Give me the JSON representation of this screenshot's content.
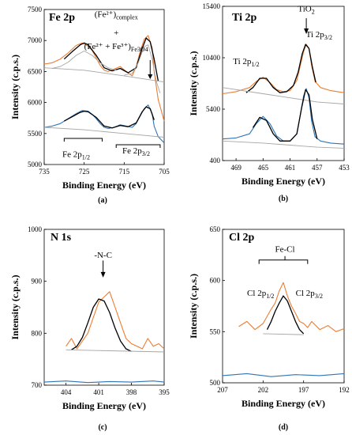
{
  "chart_data": [
    {
      "type": "line",
      "title": "Fe 2p",
      "panel_label": "(a)",
      "xlabel": "Binding Energy (eV)",
      "ylabel": "Intensity (c.p.s.)",
      "x_reversed": true,
      "xlim": [
        735,
        705
      ],
      "ylim": [
        5000,
        7500
      ],
      "xticks": [
        735,
        725,
        715,
        705
      ],
      "yticks": [
        5000,
        5500,
        6000,
        6500,
        7000,
        7500
      ],
      "series": [
        {
          "role": "spectrum",
          "color": "#ed7d31",
          "x": [
            735,
            733,
            731,
            729,
            727,
            725.5,
            724,
            723,
            722,
            721,
            720,
            719,
            717.5,
            716,
            714.5,
            713,
            712,
            711,
            710,
            709,
            708,
            707.5,
            706.5,
            705
          ],
          "y": [
            6620,
            6640,
            6700,
            6800,
            6920,
            6960,
            6910,
            6840,
            6720,
            6600,
            6520,
            6500,
            6540,
            6580,
            6500,
            6430,
            6580,
            6820,
            7020,
            7080,
            6880,
            6500,
            6050,
            5700
          ]
        },
        {
          "role": "fit",
          "color": "#000000",
          "x": [
            730,
            728,
            726,
            725,
            724,
            722,
            720,
            718,
            716,
            714,
            712,
            710.5,
            709.5,
            708.5,
            707.5,
            706.5
          ],
          "y": [
            6700,
            6820,
            6930,
            6960,
            6930,
            6760,
            6560,
            6510,
            6550,
            6480,
            6560,
            6870,
            7040,
            6980,
            6700,
            6350
          ]
        },
        {
          "role": "component",
          "color": "#a6a6a6",
          "x": [
            733,
            731,
            729,
            727,
            725,
            723,
            721,
            719,
            717
          ],
          "y": [
            6550,
            6580,
            6650,
            6760,
            6830,
            6760,
            6640,
            6560,
            6520
          ]
        },
        {
          "role": "component",
          "color": "#a6a6a6",
          "x": [
            715,
            713,
            711.5,
            710,
            709,
            708,
            707,
            706
          ],
          "y": [
            6440,
            6470,
            6640,
            6900,
            6930,
            6700,
            6350,
            6150
          ]
        },
        {
          "role": "baseline",
          "color": "#a6a6a6",
          "x": [
            735,
            725,
            715,
            705
          ],
          "y": [
            6560,
            6520,
            6430,
            6330
          ]
        },
        {
          "role": "spectrum",
          "color": "#2e75b6",
          "x": [
            735,
            733,
            731,
            729,
            727,
            725.5,
            724,
            723,
            722,
            721,
            720,
            719,
            717.5,
            716,
            714.5,
            713,
            712,
            711,
            710,
            709,
            708,
            707.5,
            706.5,
            705
          ],
          "y": [
            5600,
            5620,
            5660,
            5740,
            5820,
            5870,
            5860,
            5810,
            5740,
            5660,
            5600,
            5580,
            5600,
            5640,
            5620,
            5600,
            5660,
            5780,
            5900,
            5960,
            5820,
            5620,
            5450,
            5350
          ]
        },
        {
          "role": "fit",
          "color": "#000000",
          "x": [
            730,
            728,
            726,
            725,
            724,
            722,
            720,
            718,
            716,
            714,
            712,
            710.5,
            709.5,
            708.5,
            707.5
          ],
          "y": [
            5700,
            5770,
            5840,
            5860,
            5850,
            5760,
            5620,
            5590,
            5630,
            5610,
            5670,
            5850,
            5930,
            5900,
            5720
          ]
        },
        {
          "role": "baseline",
          "color": "#a6a6a6",
          "x": [
            735,
            725,
            715,
            705
          ],
          "y": [
            5600,
            5560,
            5500,
            5440
          ]
        }
      ],
      "annotations": [
        {
          "text": "(Fe²⁺)",
          "sub": "complex",
          "x": 717,
          "y": 7380
        },
        {
          "text": "+",
          "x": 717,
          "y": 7080
        },
        {
          "text": "(Fe²⁺ + Fe³⁺)",
          "sub": "Fe3O4",
          "x": 717,
          "y": 6860
        },
        {
          "text": "Fe 2p",
          "sub": "1/2",
          "x": 727,
          "y": 5120
        },
        {
          "text": "Fe 2p",
          "sub": "3/2",
          "x": 712,
          "y": 5180
        }
      ]
    },
    {
      "type": "line",
      "title": "Ti 2p",
      "panel_label": "(b)",
      "xlabel": "Binding Energy (eV)",
      "ylabel": "Intensity (c.p.s.)",
      "x_reversed": true,
      "xlim": [
        471,
        453
      ],
      "ylim": [
        400,
        15400
      ],
      "xticks": [
        469,
        465,
        461,
        457,
        453
      ],
      "yticks": [
        400,
        5400,
        10400,
        15400
      ],
      "series": [
        {
          "role": "spectrum",
          "color": "#ed7d31",
          "x": [
            471,
            469,
            467,
            466,
            465,
            464,
            463,
            462,
            461,
            460,
            459.5,
            459,
            458.6,
            458.2,
            457.8,
            457.3,
            456.5,
            455,
            453
          ],
          "y": [
            6900,
            7100,
            7500,
            8100,
            8500,
            8000,
            7300,
            7100,
            7200,
            8200,
            9600,
            11000,
            11700,
            11300,
            9600,
            8100,
            7500,
            7200,
            7000
          ]
        },
        {
          "role": "fit",
          "color": "#000000",
          "x": [
            467.5,
            466.5,
            465.5,
            464.5,
            463.5,
            462.5,
            461.5,
            460.5,
            459.8,
            459.2,
            458.7,
            458.2,
            457.7,
            457.2
          ],
          "y": [
            7000,
            7500,
            8400,
            8400,
            7500,
            7000,
            7100,
            7700,
            9000,
            10800,
            11700,
            11300,
            9500,
            8000
          ]
        },
        {
          "role": "baseline",
          "color": "#a6a6a6",
          "x": [
            471,
            465,
            461,
            459,
            457,
            453
          ],
          "y": [
            7500,
            6900,
            6500,
            6300,
            6100,
            5900
          ]
        },
        {
          "role": "spectrum",
          "color": "#2e75b6",
          "x": [
            471,
            469,
            467,
            466,
            465,
            464,
            463,
            462,
            461,
            460,
            459.5,
            459,
            458.6,
            458.2,
            457.8,
            457.3,
            456.5,
            455,
            453
          ],
          "y": [
            2500,
            2600,
            3000,
            4000,
            4700,
            4000,
            2800,
            2300,
            2300,
            3000,
            4800,
            6700,
            7400,
            6500,
            4200,
            2700,
            2300,
            2100,
            2000
          ]
        },
        {
          "role": "fit",
          "color": "#000000",
          "x": [
            466.5,
            465.5,
            464.5,
            463.5,
            462.5,
            461,
            460,
            459.3,
            458.7,
            458.2,
            457.7,
            457
          ],
          "y": [
            3600,
            4600,
            4300,
            3000,
            2300,
            2300,
            3000,
            5500,
            7300,
            6800,
            4400,
            2500
          ]
        },
        {
          "role": "baseline",
          "color": "#a6a6a6",
          "x": [
            471,
            465,
            461,
            457,
            453
          ],
          "y": [
            2300,
            2100,
            1900,
            1700,
            1600
          ]
        }
      ],
      "annotations": [
        {
          "text": "TiO",
          "sub": "2",
          "x": 458.6,
          "y": 14900
        },
        {
          "text": "Ti 2p",
          "sub": "3/2",
          "x": 456.7,
          "y": 12400
        },
        {
          "text": "Ti 2p",
          "sub": "1/2",
          "x": 467.5,
          "y": 9800
        }
      ]
    },
    {
      "type": "line",
      "title": "N 1s",
      "panel_label": "(c)",
      "xlabel": "Binding Energy (eV)",
      "ylabel": "Intensity (c.p.s.)",
      "x_reversed": true,
      "xlim": [
        406,
        395
      ],
      "ylim": [
        700,
        1000
      ],
      "xticks": [
        404,
        401,
        398,
        395
      ],
      "yticks": [
        700,
        800,
        900,
        1000
      ],
      "series": [
        {
          "role": "spectrum",
          "color": "#ed7d31",
          "x": [
            404,
            403.5,
            403,
            402.5,
            402,
            401.5,
            401,
            400.5,
            400,
            399.5,
            399,
            398.5,
            398,
            397.5,
            397,
            396.5,
            396,
            395.5,
            395
          ],
          "y": [
            775,
            790,
            770,
            785,
            800,
            830,
            860,
            870,
            880,
            850,
            820,
            790,
            780,
            775,
            770,
            790,
            775,
            780,
            770
          ]
        },
        {
          "role": "fit",
          "color": "#000000",
          "x": [
            403.5,
            403,
            402.5,
            402,
            401.5,
            401,
            400.5,
            400,
            399.5,
            399,
            398.5,
            398
          ],
          "y": [
            768,
            775,
            792,
            820,
            850,
            866,
            862,
            840,
            810,
            785,
            770,
            765
          ]
        },
        {
          "role": "baseline",
          "color": "#a6a6a6",
          "x": [
            404,
            395
          ],
          "y": [
            768,
            764
          ]
        },
        {
          "role": "spectrum",
          "color": "#2e75b6",
          "x": [
            406,
            404,
            402,
            400,
            398,
            396,
            395
          ],
          "y": [
            706,
            708,
            705,
            707,
            706,
            708,
            706
          ]
        }
      ],
      "annotations": [
        {
          "text": "-N-C",
          "x": 400.6,
          "y": 945
        }
      ]
    },
    {
      "type": "line",
      "title": "Cl 2p",
      "panel_label": "(d)",
      "xlabel": "Binding Energy (eV)",
      "ylabel": "Intensity (c.p.s.)",
      "x_reversed": true,
      "xlim": [
        207,
        192
      ],
      "ylim": [
        500,
        650
      ],
      "xticks": [
        207,
        202,
        197,
        192
      ],
      "yticks": [
        500,
        550,
        600,
        650
      ],
      "series": [
        {
          "role": "spectrum",
          "color": "#ed7d31",
          "x": [
            205,
            204,
            203,
            202,
            201.5,
            201,
            200.5,
            200,
            199.5,
            199,
            198.5,
            198,
            197.5,
            197,
            196.5,
            196,
            195,
            194,
            193,
            192
          ],
          "y": [
            555,
            560,
            552,
            558,
            565,
            572,
            578,
            590,
            598,
            585,
            575,
            568,
            560,
            558,
            554,
            560,
            552,
            556,
            550,
            553
          ]
        },
        {
          "role": "fit",
          "color": "#000000",
          "x": [
            201.5,
            201,
            200.5,
            200,
            199.5,
            199,
            198.5,
            198,
            197.5,
            197
          ],
          "y": [
            552,
            560,
            570,
            578,
            585,
            580,
            570,
            560,
            552,
            548
          ]
        },
        {
          "role": "baseline",
          "color": "#a6a6a6",
          "x": [
            202,
            197
          ],
          "y": [
            548,
            547
          ]
        },
        {
          "role": "spectrum",
          "color": "#2e75b6",
          "x": [
            207,
            204,
            201,
            198,
            195,
            192
          ],
          "y": [
            507,
            509,
            506,
            508,
            507,
            509
          ]
        }
      ],
      "annotations": [
        {
          "text": "Fe-Cl",
          "x": 199.3,
          "y": 628
        },
        {
          "text": "Cl 2p",
          "sub": "1/2",
          "x": 202.3,
          "y": 585
        },
        {
          "text": "Cl 2p",
          "sub": "3/2",
          "x": 196.3,
          "y": 585
        }
      ]
    }
  ]
}
